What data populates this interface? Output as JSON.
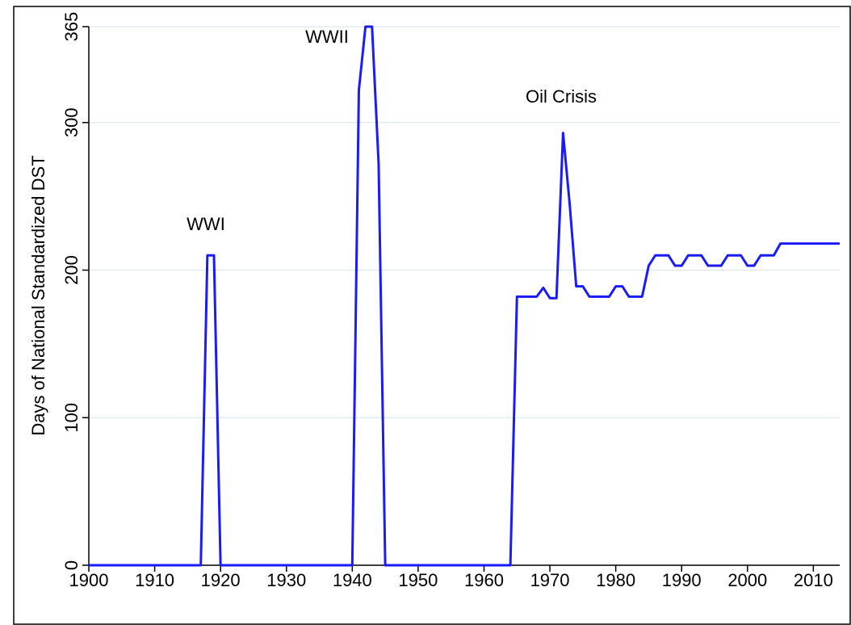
{
  "chart_data": {
    "type": "line",
    "ylabel": "Days of National Standardized DST",
    "annotations": [
      "WWI",
      "WWII",
      "Oil Crisis"
    ],
    "x": [
      1900,
      1901,
      1902,
      1903,
      1904,
      1905,
      1906,
      1907,
      1908,
      1909,
      1910,
      1911,
      1912,
      1913,
      1914,
      1915,
      1916,
      1917,
      1918,
      1919,
      1920,
      1921,
      1922,
      1923,
      1924,
      1925,
      1926,
      1927,
      1928,
      1929,
      1930,
      1931,
      1932,
      1933,
      1934,
      1935,
      1936,
      1937,
      1938,
      1939,
      1940,
      1941,
      1942,
      1943,
      1944,
      1945,
      1946,
      1947,
      1948,
      1949,
      1950,
      1951,
      1952,
      1953,
      1954,
      1955,
      1956,
      1957,
      1958,
      1959,
      1960,
      1961,
      1962,
      1963,
      1964,
      1965,
      1966,
      1967,
      1968,
      1969,
      1970,
      1971,
      1972,
      1973,
      1974,
      1975,
      1976,
      1977,
      1978,
      1979,
      1980,
      1981,
      1982,
      1983,
      1984,
      1985,
      1986,
      1987,
      1988,
      1989,
      1990,
      1991,
      1992,
      1993,
      1994,
      1995,
      1996,
      1997,
      1998,
      1999,
      2000,
      2001,
      2002,
      2003,
      2004,
      2005,
      2006,
      2007,
      2008,
      2009,
      2010,
      2011,
      2012,
      2013,
      2014
    ],
    "series": [
      {
        "name": "Days",
        "color": "#1a1aff",
        "values": [
          0,
          0,
          0,
          0,
          0,
          0,
          0,
          0,
          0,
          0,
          0,
          0,
          0,
          0,
          0,
          0,
          0,
          0,
          210,
          210,
          0,
          0,
          0,
          0,
          0,
          0,
          0,
          0,
          0,
          0,
          0,
          0,
          0,
          0,
          0,
          0,
          0,
          0,
          0,
          0,
          0,
          322,
          365,
          365,
          272,
          0,
          0,
          0,
          0,
          0,
          0,
          0,
          0,
          0,
          0,
          0,
          0,
          0,
          0,
          0,
          0,
          0,
          0,
          0,
          0,
          182,
          182,
          182,
          182,
          188,
          181,
          181,
          293,
          245,
          189,
          189,
          182,
          182,
          182,
          182,
          189,
          189,
          182,
          182,
          182,
          203,
          210,
          210,
          210,
          203,
          203,
          210,
          210,
          210,
          203,
          203,
          203,
          210,
          210,
          210,
          203,
          203,
          210,
          210,
          210,
          218,
          218,
          218,
          218,
          218,
          218,
          218,
          218,
          218,
          218
        ]
      }
    ],
    "xlim": [
      1900,
      2014
    ],
    "xticks": [
      1900,
      1910,
      1920,
      1930,
      1940,
      1950,
      1960,
      1970,
      1980,
      1990,
      2000,
      2010
    ],
    "ylim": [
      0,
      365
    ],
    "yticks": [
      0,
      100,
      200,
      300,
      365
    ],
    "grid": true
  }
}
